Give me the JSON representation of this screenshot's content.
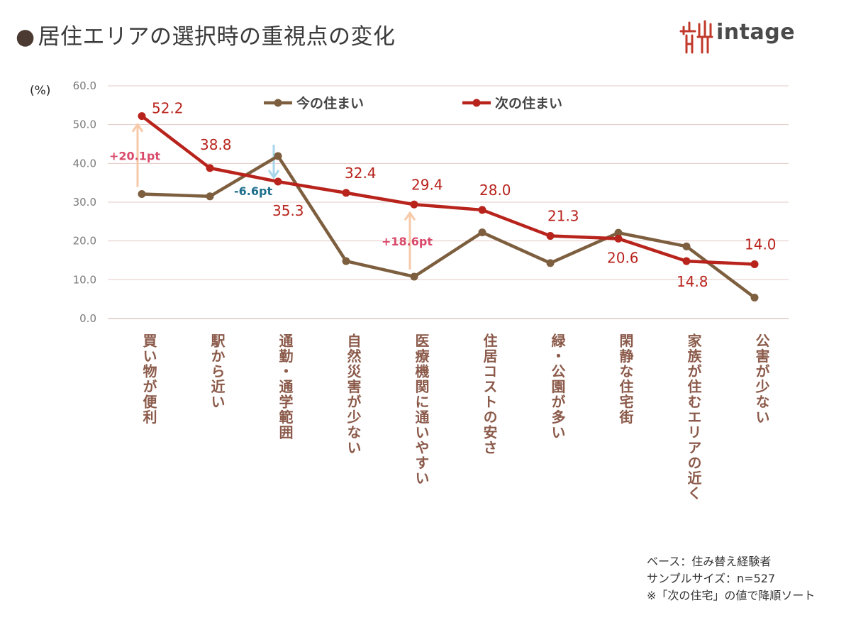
{
  "title": "居住エリアの選択時の重視点の変化",
  "title_bullet": "●",
  "logo": {
    "text": "intage"
  },
  "notes": [
    "ベース：住み替え経験者",
    "サンプルサイズ：n=527",
    "※「次の住宅」の値で降順ソート"
  ],
  "colors": {
    "current": "#7d5f3f",
    "next": "#b8231c",
    "up_arrow": "#f6c9a8",
    "down_arrow": "#a8d6ea",
    "label_up": "#d94a6a",
    "label_down": "#1f6f8b",
    "axis_label": "#8b5a4a",
    "grid": "#e3c9c5"
  },
  "chart_data": {
    "type": "line",
    "ylabel": "(%)",
    "ylim": [
      0,
      60
    ],
    "yticks": [
      "0.0",
      "10.0",
      "20.0",
      "30.0",
      "40.0",
      "50.0",
      "60.0"
    ],
    "categories": [
      "買い物が便利",
      "駅から近い",
      "通勤・通学範囲",
      "自然災害が少ない",
      "医療機関に通いやすい",
      "住居コストの安さ",
      "緑・公園が多い",
      "閑静な住宅街",
      "家族が住むエリアの近く",
      "公害が少ない"
    ],
    "series": [
      {
        "name": "今の住まい",
        "values": [
          32.1,
          31.5,
          41.9,
          14.8,
          10.8,
          22.2,
          14.3,
          22.1,
          18.6,
          5.4
        ]
      },
      {
        "name": "次の住まい",
        "values": [
          52.2,
          38.8,
          35.3,
          32.4,
          29.4,
          28.0,
          21.3,
          20.6,
          14.8,
          14.0
        ]
      }
    ],
    "data_labels": [
      "52.2",
      "38.8",
      "35.3",
      "32.4",
      "29.4",
      "28.0",
      "21.3",
      "20.6",
      "14.8",
      "14.0"
    ],
    "annotations": [
      {
        "index": 0,
        "text": "+20.1pt",
        "direction": "up"
      },
      {
        "index": 2,
        "text": "-6.6pt",
        "direction": "down"
      },
      {
        "index": 4,
        "text": "+18.6pt",
        "direction": "up"
      }
    ],
    "legend": "top"
  }
}
